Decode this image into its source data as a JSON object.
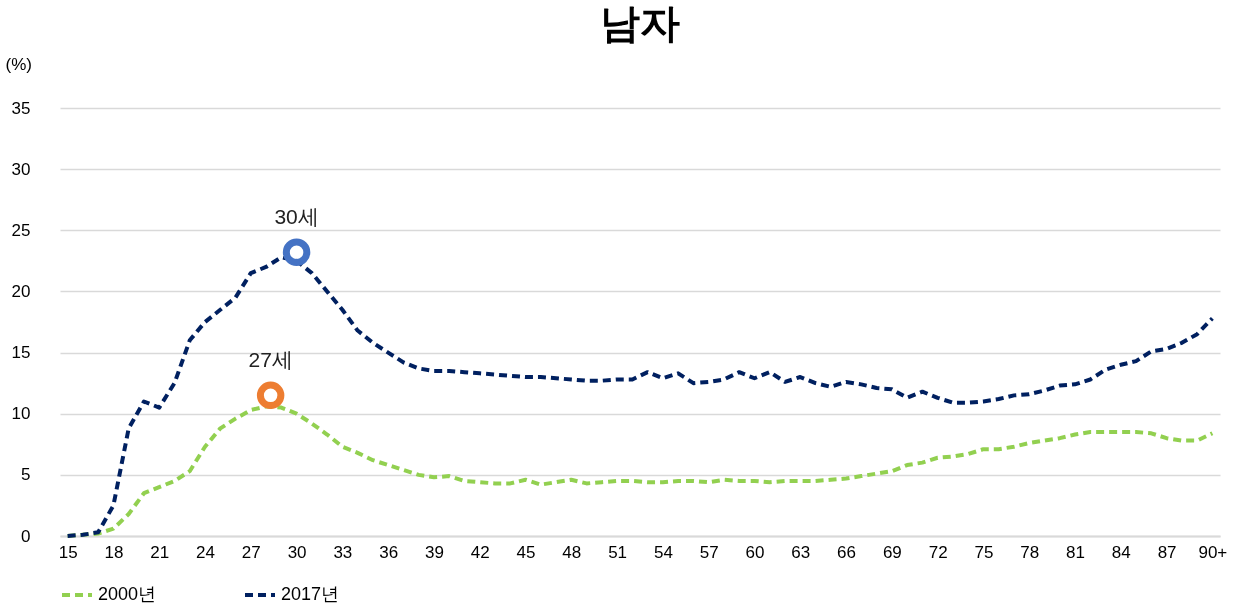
{
  "chart_data": {
    "type": "line",
    "title": "남자",
    "ylabel": "(%)",
    "x": [
      15,
      16,
      17,
      18,
      19,
      20,
      21,
      22,
      23,
      24,
      25,
      26,
      27,
      28,
      29,
      30,
      31,
      32,
      33,
      34,
      35,
      36,
      37,
      38,
      39,
      40,
      41,
      42,
      43,
      44,
      45,
      46,
      47,
      48,
      49,
      50,
      51,
      52,
      53,
      54,
      55,
      56,
      57,
      58,
      59,
      60,
      61,
      62,
      63,
      64,
      65,
      66,
      67,
      68,
      69,
      70,
      71,
      72,
      73,
      74,
      75,
      76,
      77,
      78,
      79,
      80,
      81,
      82,
      83,
      84,
      85,
      86,
      87,
      88,
      89,
      90
    ],
    "series": [
      {
        "name": "2000년",
        "color": "#92d050",
        "values": [
          0,
          0.1,
          0.2,
          0.6,
          1.8,
          3.5,
          4.0,
          4.5,
          5.3,
          7.3,
          8.8,
          9.6,
          10.3,
          10.6,
          10.5,
          10.0,
          9.2,
          8.3,
          7.3,
          6.8,
          6.2,
          5.8,
          5.4,
          5.0,
          4.8,
          4.9,
          4.5,
          4.4,
          4.3,
          4.3,
          4.6,
          4.2,
          4.4,
          4.6,
          4.3,
          4.4,
          4.5,
          4.5,
          4.4,
          4.4,
          4.5,
          4.5,
          4.4,
          4.6,
          4.5,
          4.5,
          4.4,
          4.5,
          4.5,
          4.5,
          4.6,
          4.7,
          4.9,
          5.1,
          5.3,
          5.8,
          6.0,
          6.4,
          6.5,
          6.7,
          7.1,
          7.1,
          7.3,
          7.6,
          7.8,
          8.0,
          8.3,
          8.5,
          8.5,
          8.5,
          8.5,
          8.4,
          8.0,
          7.8,
          7.8,
          8.4
        ]
      },
      {
        "name": "2017년",
        "color": "#002060",
        "values": [
          0,
          0.1,
          0.3,
          2.5,
          8.8,
          11.0,
          10.5,
          12.5,
          16.0,
          17.5,
          18.5,
          19.5,
          21.5,
          22.0,
          22.8,
          22.5,
          21.5,
          20.0,
          18.5,
          16.8,
          15.8,
          15.0,
          14.2,
          13.7,
          13.5,
          13.5,
          13.4,
          13.3,
          13.2,
          13.1,
          13.0,
          13.0,
          12.9,
          12.8,
          12.7,
          12.7,
          12.8,
          12.8,
          13.4,
          12.9,
          13.3,
          12.5,
          12.6,
          12.8,
          13.4,
          12.9,
          13.4,
          12.6,
          13.0,
          12.5,
          12.2,
          12.6,
          12.4,
          12.1,
          12.0,
          11.3,
          11.8,
          11.3,
          10.9,
          10.9,
          11.0,
          11.2,
          11.5,
          11.6,
          11.9,
          12.3,
          12.4,
          12.8,
          13.6,
          14.0,
          14.3,
          15.1,
          15.3,
          15.8,
          16.5,
          17.8
        ]
      }
    ],
    "xlim": [
      14.5,
      90.5
    ],
    "xticks": [
      15,
      18,
      21,
      24,
      27,
      30,
      33,
      36,
      39,
      42,
      45,
      48,
      51,
      54,
      57,
      60,
      63,
      66,
      69,
      72,
      75,
      78,
      81,
      84,
      87,
      {
        "value": 90,
        "label": "90+"
      }
    ],
    "ylim": [
      0,
      35
    ],
    "yticks": [
      0,
      5,
      10,
      15,
      20,
      25,
      30,
      35
    ],
    "annotations": [
      {
        "text": "30세",
        "x": 30,
        "y": 23.2
      },
      {
        "text": "27세",
        "x": 28.3,
        "y": 11.5
      }
    ],
    "grid": "y",
    "legend": "bottom",
    "marker": "none",
    "line_style": "dashed"
  }
}
